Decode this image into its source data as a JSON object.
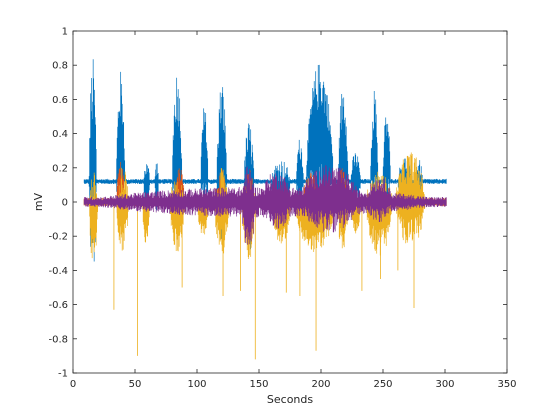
{
  "chart_data": {
    "type": "line",
    "title": "",
    "xlabel": "Seconds",
    "ylabel": "mV",
    "xlim": [
      0,
      350
    ],
    "ylim": [
      -1,
      1
    ],
    "xticks": [
      0,
      50,
      100,
      150,
      200,
      250,
      300,
      350
    ],
    "yticks": [
      -1,
      -0.8,
      -0.6,
      -0.4,
      -0.2,
      0,
      0.2,
      0.4,
      0.6,
      0.8,
      1
    ],
    "xtick_labels": [
      "0",
      "50",
      "100",
      "150",
      "200",
      "250",
      "300",
      "350"
    ],
    "ytick_labels": [
      "-1",
      "-0.8",
      "-0.6",
      "-0.4",
      "-0.2",
      "0",
      "0.2",
      "0.4",
      "0.6",
      "0.8",
      "1"
    ],
    "grid": false,
    "legend": "none",
    "series": [
      {
        "color": "#0072BD",
        "baseline": 0.12,
        "noise": 0.015,
        "x_range": [
          9,
          301
        ],
        "bursts": [
          {
            "start": 13,
            "end": 19,
            "max": 0.85,
            "min": -0.45
          },
          {
            "start": 35,
            "end": 42,
            "max": 0.77,
            "min": -0.15
          },
          {
            "start": 57,
            "end": 62,
            "max": 0.24,
            "min": -0.05
          },
          {
            "start": 66,
            "end": 69,
            "max": 0.25,
            "min": -0.05
          },
          {
            "start": 80,
            "end": 88,
            "max": 0.78,
            "min": -0.2
          },
          {
            "start": 103,
            "end": 109,
            "max": 0.57,
            "min": -0.1
          },
          {
            "start": 116,
            "end": 124,
            "max": 0.72,
            "min": -0.25
          },
          {
            "start": 138,
            "end": 146,
            "max": 0.48,
            "min": -0.3
          },
          {
            "start": 160,
            "end": 175,
            "max": 0.26,
            "min": -0.2
          },
          {
            "start": 180,
            "end": 186,
            "max": 0.38,
            "min": -0.05
          },
          {
            "start": 188,
            "end": 210,
            "max": 0.82,
            "min": -0.05
          },
          {
            "start": 214,
            "end": 222,
            "max": 0.7,
            "min": -0.1
          },
          {
            "start": 224,
            "end": 232,
            "max": 0.3,
            "min": -0.05
          },
          {
            "start": 240,
            "end": 246,
            "max": 0.67,
            "min": -0.1
          },
          {
            "start": 250,
            "end": 256,
            "max": 0.55,
            "min": -0.05
          },
          {
            "start": 262,
            "end": 274,
            "max": 0.27,
            "min": -0.05
          },
          {
            "start": 276,
            "end": 282,
            "max": 0.25,
            "min": -0.05
          }
        ],
        "spikes": []
      },
      {
        "color": "#D95319",
        "baseline": 0.0,
        "noise": 0.025,
        "x_range": [
          9,
          301
        ],
        "bursts": [
          {
            "start": 35,
            "end": 42,
            "max": 0.25,
            "min": -0.15
          },
          {
            "start": 82,
            "end": 90,
            "max": 0.22,
            "min": -0.12
          },
          {
            "start": 116,
            "end": 124,
            "max": 0.2,
            "min": -0.1
          },
          {
            "start": 138,
            "end": 146,
            "max": 0.2,
            "min": -0.2
          },
          {
            "start": 185,
            "end": 200,
            "max": 0.18,
            "min": -0.12
          },
          {
            "start": 212,
            "end": 222,
            "max": 0.2,
            "min": -0.12
          },
          {
            "start": 268,
            "end": 278,
            "max": 0.12,
            "min": -0.1
          }
        ],
        "spikes": []
      },
      {
        "color": "#EDB120",
        "baseline": 0.0,
        "noise": 0.02,
        "x_range": [
          9,
          301
        ],
        "bursts": [
          {
            "start": 13,
            "end": 20,
            "max": 0.18,
            "min": -0.4
          },
          {
            "start": 35,
            "end": 45,
            "max": 0.22,
            "min": -0.3
          },
          {
            "start": 56,
            "end": 62,
            "max": 0.05,
            "min": -0.25
          },
          {
            "start": 78,
            "end": 90,
            "max": 0.15,
            "min": -0.3
          },
          {
            "start": 100,
            "end": 110,
            "max": 0.05,
            "min": -0.2
          },
          {
            "start": 114,
            "end": 126,
            "max": 0.2,
            "min": -0.32
          },
          {
            "start": 136,
            "end": 147,
            "max": 0.15,
            "min": -0.35
          },
          {
            "start": 160,
            "end": 176,
            "max": 0.05,
            "min": -0.25
          },
          {
            "start": 178,
            "end": 212,
            "max": 0.1,
            "min": -0.3
          },
          {
            "start": 213,
            "end": 222,
            "max": 0.12,
            "min": -0.3
          },
          {
            "start": 224,
            "end": 232,
            "max": 0.05,
            "min": -0.2
          },
          {
            "start": 236,
            "end": 258,
            "max": 0.18,
            "min": -0.32
          },
          {
            "start": 260,
            "end": 284,
            "max": 0.3,
            "min": -0.28
          }
        ],
        "spikes": [
          {
            "x": 33,
            "y": -0.63
          },
          {
            "x": 52,
            "y": -0.9
          },
          {
            "x": 88,
            "y": -0.5
          },
          {
            "x": 121,
            "y": -0.55
          },
          {
            "x": 135,
            "y": -0.52
          },
          {
            "x": 147,
            "y": -0.92
          },
          {
            "x": 172,
            "y": -0.53
          },
          {
            "x": 183,
            "y": -0.55
          },
          {
            "x": 196,
            "y": -0.87
          },
          {
            "x": 233,
            "y": -0.52
          },
          {
            "x": 248,
            "y": -0.45
          },
          {
            "x": 262,
            "y": -0.4
          },
          {
            "x": 275,
            "y": -0.62
          }
        ]
      },
      {
        "color": "#7E2F8E",
        "baseline": 0.0,
        "noise": 0.03,
        "x_range": [
          9,
          301
        ],
        "bursts": [
          {
            "start": 9,
            "end": 301,
            "max": 0.09,
            "min": -0.09
          },
          {
            "start": 136,
            "end": 147,
            "max": 0.22,
            "min": -0.3
          },
          {
            "start": 150,
            "end": 178,
            "max": 0.18,
            "min": -0.16
          },
          {
            "start": 182,
            "end": 232,
            "max": 0.22,
            "min": -0.18
          },
          {
            "start": 236,
            "end": 258,
            "max": 0.15,
            "min": -0.12
          }
        ],
        "spikes": []
      }
    ]
  }
}
